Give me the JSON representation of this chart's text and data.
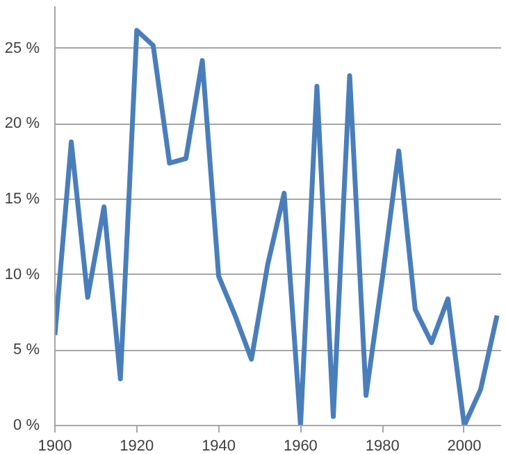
{
  "chart_data": {
    "type": "line",
    "x": [
      1900,
      1904,
      1908,
      1912,
      1916,
      1920,
      1924,
      1928,
      1932,
      1936,
      1940,
      1944,
      1948,
      1952,
      1956,
      1960,
      1964,
      1968,
      1972,
      1976,
      1980,
      1984,
      1988,
      1992,
      1996,
      2000,
      2004,
      2008
    ],
    "series": [
      {
        "color": "#4a7ebb",
        "values": [
          6.0,
          18.8,
          8.5,
          14.5,
          3.1,
          26.2,
          25.2,
          17.4,
          17.7,
          24.2,
          9.9,
          7.3,
          4.4,
          10.7,
          15.4,
          0,
          22.5,
          0.6,
          23.2,
          2.0,
          9.8,
          18.2,
          7.7,
          5.5,
          8.4,
          0,
          2.4,
          7.3
        ]
      }
    ],
    "xlim": [
      1900,
      2009
    ],
    "ylim": [
      0,
      27.8
    ],
    "xticks": [
      1900,
      1920,
      1940,
      1960,
      1980,
      2000
    ],
    "yticks": [
      {
        "value": 0,
        "label": "0 %"
      },
      {
        "value": 5,
        "label": "5 %"
      },
      {
        "value": 10,
        "label": "10 %"
      },
      {
        "value": 15,
        "label": "15 %"
      },
      {
        "value": 20,
        "label": "20 %"
      },
      {
        "value": 25,
        "label": "25 %"
      }
    ],
    "grid": "y",
    "marker": "none",
    "line_style": "solid"
  }
}
